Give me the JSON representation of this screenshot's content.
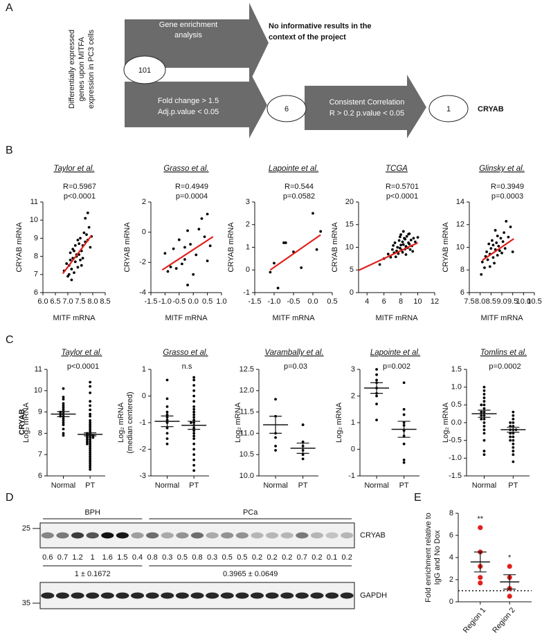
{
  "panel_labels": [
    "A",
    "B",
    "C",
    "D",
    "E"
  ],
  "diagram": {
    "side_label": [
      "Differentially expressed",
      "genes upon MITFA",
      "expression in PC3 cells"
    ],
    "nodes": [
      {
        "label": "101"
      },
      {
        "label": "6"
      },
      {
        "label": "1"
      }
    ],
    "arrows": [
      {
        "label": [
          "Gene enrichment",
          "analysis"
        ]
      },
      {
        "label": [
          "Fold change > 1.5",
          "Adj.p.value < 0.05"
        ]
      },
      {
        "label": [
          "Consistent Correlation",
          "R > 0.2 p.value < 0.05"
        ]
      }
    ],
    "outcome": [
      "No informative results in the",
      "context of the project"
    ],
    "result": "CRYAB"
  },
  "row_label_c": "CRYAB",
  "chart_data": [
    {
      "type": "scatter",
      "title": "Taylor et al.",
      "annotations": [
        "R=0.5967",
        "p<0.0001"
      ],
      "x_label": "MITF mRNA",
      "y_label": "CRYAB mRNA",
      "color": "#000000",
      "x": [
        6.85,
        6.95,
        7.0,
        7.05,
        7.1,
        7.1,
        7.15,
        7.2,
        7.2,
        7.25,
        7.3,
        7.3,
        7.35,
        7.4,
        7.4,
        7.45,
        7.5,
        7.5,
        7.55,
        7.6,
        7.6,
        7.65,
        7.7,
        7.75,
        7.8,
        7.85,
        7.9,
        7.95,
        7.15,
        7.35,
        7.45,
        7.25,
        7.05,
        7.55,
        7.7,
        7.8
      ],
      "y": [
        7.2,
        7.6,
        6.9,
        7.5,
        7.8,
        8.2,
        7.3,
        7.9,
        8.4,
        7.1,
        7.7,
        8.6,
        8.0,
        7.4,
        8.9,
        8.1,
        7.8,
        9.0,
        8.3,
        8.6,
        7.9,
        9.3,
        8.8,
        9.2,
        10.4,
        9.6,
        8.5,
        9.1,
        6.7,
        8.1,
        8.7,
        8.3,
        7.0,
        7.5,
        10.1,
        8.9
      ],
      "trend_line": {
        "color": "#e0201b",
        "x": [
          6.8,
          7.95
        ],
        "y": [
          7.05,
          9.15
        ]
      },
      "xlim": [
        6,
        8.5
      ],
      "xticks": [
        {
          "value": 6,
          "label": "6.0"
        },
        6.5,
        {
          "value": 7,
          "label": "7.0"
        },
        7.5,
        {
          "value": 8,
          "label": "8.0"
        },
        8.5
      ],
      "ylim": [
        6,
        11
      ],
      "yticks": [
        6,
        7,
        8,
        9,
        10,
        11
      ]
    },
    {
      "type": "scatter",
      "title": "Grasso et al.",
      "annotations": [
        "R=0.4949",
        "p=0.0004"
      ],
      "x_label": "MITF mRNA",
      "y_label": "CRYAB mRNA",
      "color": "#000000",
      "x": [
        -1.0,
        -0.9,
        -0.8,
        -0.7,
        -0.6,
        -0.5,
        -0.4,
        -0.3,
        -0.3,
        -0.2,
        -0.1,
        0.0,
        0.1,
        0.2,
        0.3,
        0.4,
        0.5,
        0.5,
        0.6,
        -0.2
      ],
      "y": [
        -1.4,
        -2.6,
        -2.3,
        -1.1,
        -2.4,
        -0.5,
        -2.1,
        -1.8,
        -1.0,
        -3.5,
        -0.8,
        -2.8,
        -1.5,
        0.2,
        0.9,
        -0.3,
        1.2,
        -1.9,
        -0.9,
        0.1
      ],
      "trend_line": {
        "color": "#e0201b",
        "x": [
          -1.1,
          0.7
        ],
        "y": [
          -2.5,
          -0.3
        ]
      },
      "xlim": [
        -1.5,
        1
      ],
      "xticks": [
        -1.5,
        {
          "value": -1,
          "label": "-1.0"
        },
        -0.5,
        {
          "value": 0,
          "label": "0.0"
        },
        0.5,
        {
          "value": 1,
          "label": "1.0"
        }
      ],
      "ylim": [
        -4,
        2
      ],
      "yticks": [
        -4,
        -2,
        0,
        2
      ]
    },
    {
      "type": "scatter",
      "title": "Lapointe et al.",
      "annotations": [
        "R=0.544",
        "p=0.0582"
      ],
      "x_label": "MITF mRNA",
      "y_label": "CRYAB mRNA",
      "color": "#000000",
      "x": [
        -1.1,
        -1.0,
        -0.9,
        -0.75,
        -0.7,
        -0.5,
        -0.3,
        0.0,
        0.1,
        0.2
      ],
      "y": [
        -0.1,
        0.3,
        -0.8,
        1.2,
        1.2,
        0.8,
        0.1,
        2.5,
        0.9,
        1.7
      ],
      "trend_line": {
        "color": "#e0201b",
        "x": [
          -1.1,
          0.2
        ],
        "y": [
          0.0,
          1.55
        ]
      },
      "xlim": [
        -1.5,
        0.5
      ],
      "xticks": [
        -1.5,
        {
          "value": -1,
          "label": "-1.0"
        },
        -0.5,
        {
          "value": 0,
          "label": "0.0"
        },
        0.5
      ],
      "ylim": [
        -1,
        3
      ],
      "yticks": [
        -1,
        0,
        1,
        2,
        3
      ]
    },
    {
      "type": "scatter",
      "title": "TCGA",
      "annotations": [
        "R=0.5701",
        "p<0.0001"
      ],
      "x_label": "MITF mRNA",
      "y_label": "CRYAB mRNA",
      "color": "#000000",
      "x": [
        5.5,
        6.0,
        6.5,
        6.8,
        7.0,
        7.2,
        7.3,
        7.5,
        7.6,
        7.7,
        7.8,
        7.9,
        8.0,
        8.0,
        8.1,
        8.2,
        8.2,
        8.3,
        8.4,
        8.5,
        8.5,
        8.6,
        8.7,
        8.8,
        8.9,
        9.0,
        9.0,
        9.1,
        9.2,
        9.3,
        9.5,
        9.7,
        10.0,
        7.4,
        7.9,
        8.3,
        8.6,
        8.9,
        9.4,
        7.1
      ],
      "y": [
        6.2,
        7.5,
        8.5,
        7.8,
        9.5,
        8.8,
        11.0,
        9.2,
        10.0,
        8.6,
        11.5,
        9.8,
        10.5,
        12.8,
        9.4,
        11.2,
        8.9,
        10.6,
        12.0,
        9.6,
        11.8,
        10.2,
        12.4,
        9.9,
        11.0,
        10.7,
        13.0,
        9.5,
        11.6,
        10.3,
        12.0,
        11.2,
        12.2,
        7.9,
        12.3,
        13.5,
        8.4,
        12.9,
        9.1,
        10.4
      ],
      "trend_line": {
        "color": "#e0201b",
        "x": [
          3,
          10
        ],
        "y": [
          4.9,
          11.0
        ]
      },
      "xlim": [
        3,
        12
      ],
      "xticks": [
        4,
        6,
        8,
        10,
        12
      ],
      "ylim": [
        0,
        20
      ],
      "yticks": [
        0,
        5,
        10,
        15,
        20
      ]
    },
    {
      "type": "scatter",
      "title": "Glinsky et al.",
      "annotations": [
        "R=0.3949",
        "p=0.0003"
      ],
      "x_label": "MITF mRNA",
      "y_label": "CRYAB mRNA",
      "color": "#000000",
      "x": [
        8.05,
        8.1,
        8.2,
        8.25,
        8.3,
        8.35,
        8.4,
        8.45,
        8.5,
        8.55,
        8.6,
        8.6,
        8.65,
        8.7,
        8.75,
        8.8,
        8.8,
        8.85,
        8.9,
        8.95,
        9.0,
        9.05,
        9.1,
        9.15,
        9.2,
        9.3,
        9.4,
        9.5,
        8.45,
        8.7
      ],
      "y": [
        7.6,
        8.7,
        8.2,
        9.2,
        9.6,
        8.9,
        10.3,
        9.4,
        9.9,
        10.6,
        9.1,
        10.2,
        8.6,
        9.8,
        10.4,
        9.3,
        11.0,
        10.1,
        9.7,
        10.8,
        9.5,
        10.5,
        11.3,
        9.9,
        12.3,
        10.9,
        11.8,
        9.6,
        8.3,
        11.5
      ],
      "trend_line": {
        "color": "#e0201b",
        "x": [
          8.1,
          9.55
        ],
        "y": [
          8.85,
          10.75
        ]
      },
      "xlim": [
        7.5,
        10.5
      ],
      "xticks": [
        7.5,
        {
          "value": 8,
          "label": "8.0"
        },
        8.5,
        {
          "value": 9,
          "label": "9.0"
        },
        9.5,
        {
          "value": 10,
          "label": "10.0"
        },
        10.5
      ],
      "ylim": [
        6,
        14
      ],
      "yticks": [
        6,
        8,
        10,
        12,
        14
      ]
    },
    {
      "type": "strip",
      "title": "Taylor et al.",
      "annotation": "p<0.0001",
      "y_label": [
        "Log₂ mRNA"
      ],
      "color": "#000000",
      "categories": [
        "Normal",
        "PT"
      ],
      "groups": [
        {
          "values": [
            10.1,
            9.7,
            9.6,
            9.4,
            9.3,
            9.2,
            9.1,
            9.0,
            9.0,
            8.9,
            8.9,
            8.8,
            8.8,
            8.7,
            8.6,
            8.5,
            8.4,
            8.2,
            8.0,
            7.9
          ],
          "mean": 8.9,
          "sem": 0.12
        },
        {
          "values": [
            10.4,
            10.2,
            9.9,
            9.5,
            9.3,
            9.1,
            8.9,
            8.8,
            8.6,
            8.5,
            8.4,
            8.3,
            8.2,
            8.1,
            8.0,
            8.0,
            7.9,
            7.9,
            7.9,
            7.8,
            7.8,
            7.8,
            7.7,
            7.7,
            7.6,
            7.5,
            7.5,
            7.4,
            7.3,
            7.2,
            7.1,
            7.0,
            6.9,
            6.8,
            6.7,
            6.6,
            6.5,
            6.4,
            6.3,
            7.6
          ],
          "mean": 7.95,
          "sem": 0.07
        }
      ],
      "ylim": [
        6,
        11
      ],
      "yticks": [
        6,
        7,
        8,
        9,
        10,
        11
      ]
    },
    {
      "type": "strip",
      "title": "Grasso et al.",
      "annotation": "n.s",
      "y_label": [
        "Log₂ mRNA",
        "(median centered)"
      ],
      "color": "#000000",
      "categories": [
        "Normal",
        "PT"
      ],
      "groups": [
        {
          "values": [
            0.6,
            -0.1,
            -0.4,
            -0.6,
            -0.7,
            -0.8,
            -0.9,
            -1.0,
            -1.2,
            -1.4,
            -1.6,
            -1.8
          ],
          "mean": -0.95,
          "sem": 0.2
        },
        {
          "values": [
            0.7,
            0.6,
            0.4,
            0.2,
            0.0,
            -0.2,
            -0.4,
            -0.6,
            -0.7,
            -0.8,
            -0.9,
            -1.0,
            -1.1,
            -1.2,
            -1.3,
            -1.4,
            -1.5,
            -1.6,
            -1.8,
            -2.0,
            -2.2,
            -2.4,
            -2.6,
            -2.8,
            -1.0,
            -0.5
          ],
          "mean": -1.1,
          "sem": 0.15
        }
      ],
      "ylim": [
        -3,
        1
      ],
      "yticks": [
        -3,
        -2,
        -1,
        0,
        1
      ]
    },
    {
      "type": "strip",
      "title": "Varambally et al.",
      "annotation": "p=0.03",
      "y_label": [
        "Log₂ mRNA"
      ],
      "color": "#000000",
      "categories": [
        "Normal",
        "PT"
      ],
      "groups": [
        {
          "values": [
            11.8,
            11.4,
            11.0,
            10.9,
            10.7,
            10.6
          ],
          "mean": 11.2,
          "sem": 0.2
        },
        {
          "values": [
            11.2,
            10.8,
            10.7,
            10.6,
            10.5,
            10.4
          ],
          "mean": 10.65,
          "sem": 0.12
        }
      ],
      "ylim": [
        10,
        12.5
      ],
      "yticks": [
        {
          "value": 10,
          "label": "10.0"
        },
        10.5,
        {
          "value": 11,
          "label": "11.0"
        },
        11.5,
        {
          "value": 12,
          "label": "12.0"
        },
        12.5
      ]
    },
    {
      "type": "strip",
      "title": "Lapointe et al.",
      "annotation": "p=0.002",
      "y_label": [
        "Log₂ mRNA"
      ],
      "color": "#000000",
      "categories": [
        "Normal",
        "PT"
      ],
      "groups": [
        {
          "values": [
            3.0,
            2.8,
            2.6,
            2.5,
            2.3,
            2.1,
            2.0,
            1.7,
            1.1
          ],
          "mean": 2.3,
          "sem": 0.2
        },
        {
          "values": [
            2.5,
            1.5,
            1.3,
            1.0,
            0.9,
            0.7,
            0.5,
            0.2,
            -0.4,
            -0.5
          ],
          "mean": 0.75,
          "sem": 0.3
        }
      ],
      "ylim": [
        -1,
        3
      ],
      "yticks": [
        -1,
        0,
        1,
        2,
        3
      ]
    },
    {
      "type": "strip",
      "title": "Tomlins et al.",
      "annotation": "p=0.0002",
      "y_label": [
        "Log₂ mRNA"
      ],
      "color": "#000000",
      "categories": [
        "Normal",
        "PT"
      ],
      "groups": [
        {
          "values": [
            1.0,
            0.9,
            0.8,
            0.7,
            0.6,
            0.5,
            0.5,
            0.4,
            0.3,
            0.3,
            0.2,
            0.2,
            0.1,
            0.1,
            0.0,
            -0.1,
            -0.2,
            -0.3,
            -0.5,
            -0.8,
            -0.9
          ],
          "mean": 0.25,
          "sem": 0.1
        },
        {
          "values": [
            0.3,
            0.2,
            0.1,
            0.0,
            0.0,
            -0.1,
            -0.1,
            -0.2,
            -0.2,
            -0.2,
            -0.3,
            -0.3,
            -0.4,
            -0.4,
            -0.5,
            -0.5,
            -0.6,
            -0.7,
            -0.8,
            -0.9,
            -1.1
          ],
          "mean": -0.2,
          "sem": 0.07
        }
      ],
      "ylim": [
        -1.5,
        1.5
      ],
      "yticks": [
        -1.5,
        {
          "value": -1,
          "label": "-1.0"
        },
        -0.5,
        {
          "value": 0,
          "label": "0.0"
        },
        0.5,
        {
          "value": 1,
          "label": "1.0"
        },
        1.5
      ]
    },
    {
      "type": "dot",
      "y_label": [
        "Fold enrichment relative to",
        "IgG and No Dox"
      ],
      "color": "#e0201b",
      "categories": [
        "Region 1",
        "Region 2"
      ],
      "groups": [
        {
          "values": [
            6.7,
            4.5,
            3.2,
            2.2,
            1.7
          ],
          "mean": 3.6,
          "sem": 0.9,
          "annotation": "**"
        },
        {
          "values": [
            3.2,
            2.2,
            1.2,
            0.5
          ],
          "mean": 1.8,
          "sem": 0.65,
          "annotation": "*"
        }
      ],
      "reference_line": 1,
      "ylim": [
        0,
        8
      ],
      "yticks": [
        0,
        2,
        4,
        6,
        8
      ]
    }
  ],
  "blot": {
    "groups": [
      "BPH",
      "PCa"
    ],
    "markers": [
      25,
      35
    ],
    "bands": [
      "CRYAB",
      "GAPDH"
    ],
    "quantification": [
      0.6,
      0.7,
      1.2,
      1,
      1.6,
      1.5,
      0.4,
      0.8,
      0.3,
      0.5,
      0.8,
      0.3,
      0.5,
      0.5,
      0.2,
      0.2,
      0.2,
      0.7,
      0.2,
      0.1,
      0.2
    ],
    "summaries": [
      "1 ± 0.1672",
      "0.3965 ± 0.0649"
    ]
  }
}
